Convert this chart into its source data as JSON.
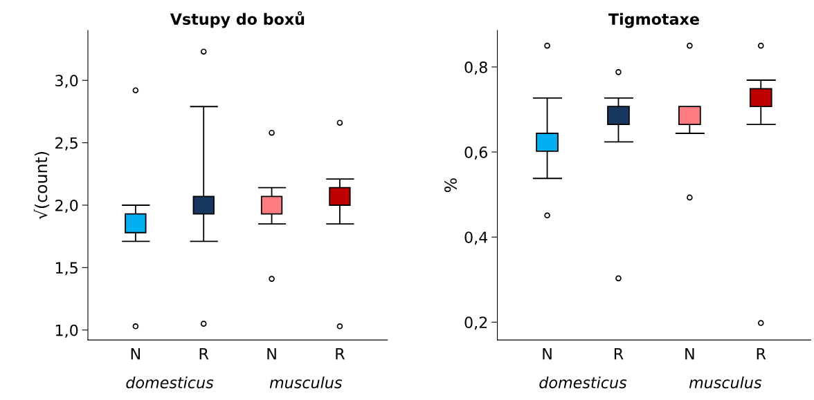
{
  "chart_data": [
    {
      "type": "box",
      "title": "Vstupy do boxů",
      "ylabel": "√(count)",
      "categories": [
        "N",
        "R",
        "N",
        "R"
      ],
      "annotations": [
        "domesticus",
        "musculus"
      ],
      "colors": [
        "#00b0f0",
        "#17375e",
        "#ff7c80",
        "#c00000"
      ],
      "boxes": [
        {
          "low": 1.71,
          "q1": 1.78,
          "q3": 1.93,
          "high": 2.0,
          "outliers": [
            2.92,
            1.03
          ]
        },
        {
          "low": 1.71,
          "q1": 1.93,
          "q3": 2.07,
          "high": 2.79,
          "outliers": [
            3.23,
            1.05
          ]
        },
        {
          "low": 1.85,
          "q1": 1.93,
          "q3": 2.07,
          "high": 2.14,
          "outliers": [
            2.58,
            1.41
          ]
        },
        {
          "low": 1.85,
          "q1": 2.0,
          "q3": 2.14,
          "high": 2.21,
          "outliers": [
            2.66,
            1.03
          ]
        }
      ],
      "ylim": [
        0.92,
        3.4
      ],
      "yticks": [
        {
          "value": 1.0,
          "label": "1,0"
        },
        {
          "value": 1.5,
          "label": "1,5"
        },
        {
          "value": 2.0,
          "label": "2,0"
        },
        {
          "value": 2.5,
          "label": "2,5"
        },
        {
          "value": 3.0,
          "label": "3,0"
        }
      ],
      "grid": false
    },
    {
      "type": "box",
      "title": "Tigmotaxe",
      "ylabel": "%",
      "categories": [
        "N",
        "R",
        "N",
        "R"
      ],
      "annotations": [
        "domesticus",
        "musculus"
      ],
      "colors": [
        "#00b0f0",
        "#17375e",
        "#ff7c80",
        "#c00000"
      ],
      "boxes": [
        {
          "low": 0.538,
          "q1": 0.602,
          "q3": 0.644,
          "high": 0.727,
          "outliers": [
            0.85,
            0.451
          ]
        },
        {
          "low": 0.624,
          "q1": 0.665,
          "q3": 0.707,
          "high": 0.727,
          "outliers": [
            0.788,
            0.303
          ]
        },
        {
          "low": 0.644,
          "q1": 0.665,
          "q3": 0.707,
          "high": 0.707,
          "outliers": [
            0.85,
            0.493
          ]
        },
        {
          "low": 0.665,
          "q1": 0.707,
          "q3": 0.749,
          "high": 0.769,
          "outliers": [
            0.85,
            0.198
          ]
        }
      ],
      "ylim": [
        0.158,
        0.886
      ],
      "yticks": [
        {
          "value": 0.2,
          "label": "0,2"
        },
        {
          "value": 0.4,
          "label": "0,4"
        },
        {
          "value": 0.6,
          "label": "0,6"
        },
        {
          "value": 0.8,
          "label": "0,8"
        }
      ],
      "grid": false
    }
  ]
}
